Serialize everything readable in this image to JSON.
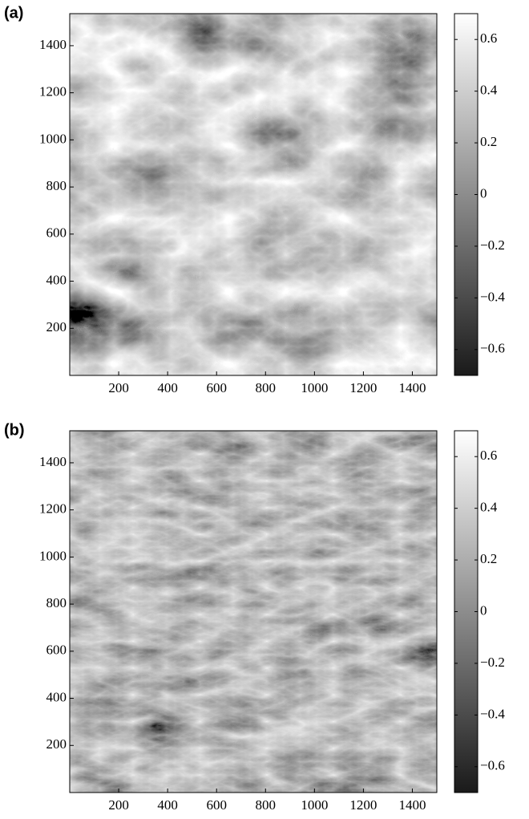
{
  "chart_data": [
    {
      "type": "heatmap",
      "label": "(a)",
      "xlim": [
        0,
        1500
      ],
      "xticks": [
        200,
        400,
        600,
        800,
        1000,
        1200,
        1400
      ],
      "ylim": [
        0,
        1536
      ],
      "yticks": [
        200,
        400,
        600,
        800,
        1000,
        1200,
        1400
      ],
      "clim": [
        -0.7,
        0.7
      ],
      "cticks": [
        {
          "value": -0.6,
          "label": "−0.6"
        },
        {
          "value": -0.4,
          "label": "−0.4"
        },
        {
          "value": -0.2,
          "label": "−0.2"
        },
        0,
        0.2,
        0.4,
        0.6
      ]
    },
    {
      "type": "heatmap",
      "label": "(b)",
      "xlim": [
        0,
        1500
      ],
      "xticks": [
        200,
        400,
        600,
        800,
        1000,
        1200,
        1400
      ],
      "ylim": [
        0,
        1536
      ],
      "yticks": [
        200,
        400,
        600,
        800,
        1000,
        1200,
        1400
      ],
      "clim": [
        -0.7,
        0.7
      ],
      "cticks": [
        {
          "value": -0.6,
          "label": "−0.6"
        },
        {
          "value": -0.4,
          "label": "−0.4"
        },
        {
          "value": -0.2,
          "label": "−0.2"
        },
        0,
        0.2,
        0.4,
        0.6
      ]
    }
  ]
}
